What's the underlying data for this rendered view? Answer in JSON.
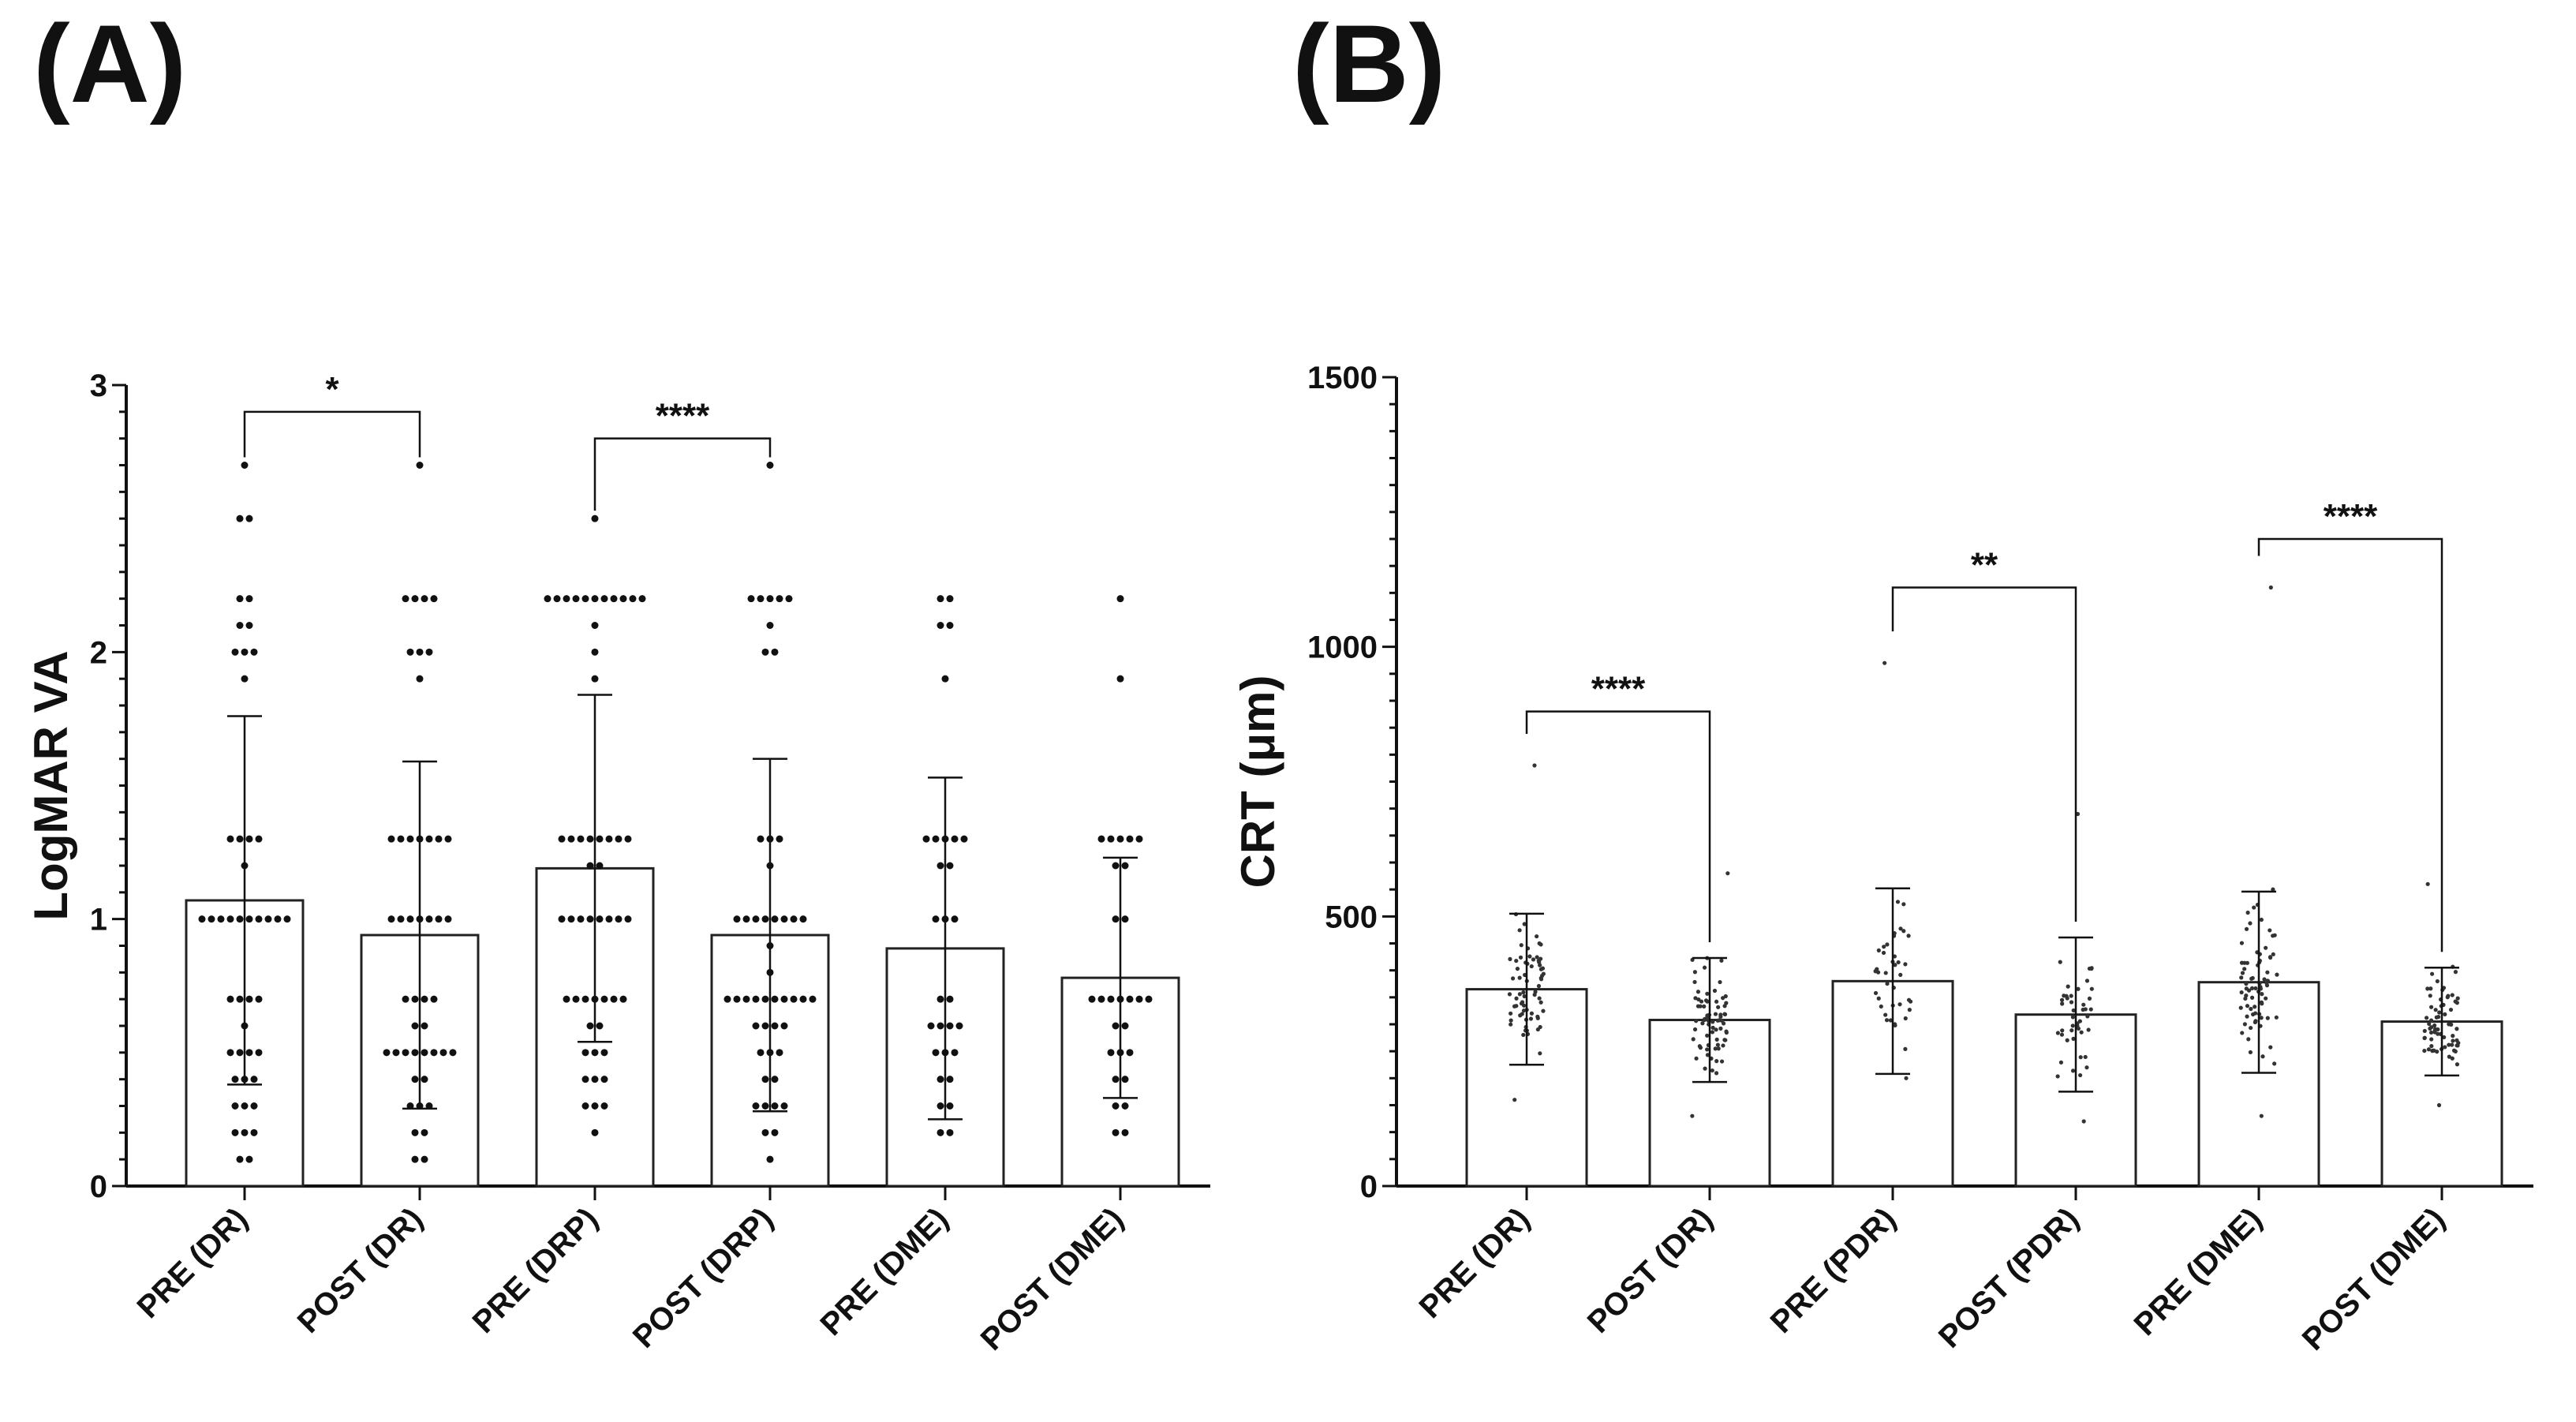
{
  "panels": {
    "a_label": "(A)",
    "b_label": "(B)"
  },
  "chart_data": [
    {
      "type": "bar",
      "panel": "(A)",
      "title": "",
      "xlabel": "",
      "ylabel": "LogMAR VA",
      "ylim": [
        0,
        3
      ],
      "yticks": [
        0,
        1,
        2,
        3
      ],
      "categories": [
        "PRE (DR)",
        "POST (DR)",
        "PRE (DRP)",
        "POST (DRP)",
        "PRE (DME)",
        "POST (DME)"
      ],
      "values": [
        1.07,
        0.94,
        1.19,
        0.94,
        0.89,
        0.78
      ],
      "error_sd": [
        0.69,
        0.65,
        0.65,
        0.66,
        0.64,
        0.45
      ],
      "points": [
        [
          2.7,
          2.5,
          2.5,
          2.2,
          2.2,
          2.1,
          2.1,
          2.0,
          2.0,
          2.0,
          1.9,
          1.3,
          1.3,
          1.3,
          1.3,
          1.2,
          1.0,
          1.0,
          1.0,
          1.0,
          1.0,
          1.0,
          1.0,
          1.0,
          1.0,
          1.0,
          0.7,
          0.7,
          0.7,
          0.7,
          0.6,
          0.5,
          0.5,
          0.5,
          0.5,
          0.4,
          0.4,
          0.4,
          0.3,
          0.3,
          0.3,
          0.2,
          0.2,
          0.2,
          0.1,
          0.1
        ],
        [
          2.7,
          2.2,
          2.2,
          2.2,
          2.2,
          2.0,
          2.0,
          2.0,
          1.9,
          1.3,
          1.3,
          1.3,
          1.3,
          1.3,
          1.3,
          1.3,
          1.0,
          1.0,
          1.0,
          1.0,
          1.0,
          1.0,
          1.0,
          0.7,
          0.7,
          0.7,
          0.7,
          0.6,
          0.6,
          0.5,
          0.5,
          0.5,
          0.5,
          0.5,
          0.5,
          0.5,
          0.5,
          0.4,
          0.4,
          0.3,
          0.3,
          0.3,
          0.2,
          0.2,
          0.1,
          0.1
        ],
        [
          2.5,
          2.2,
          2.2,
          2.2,
          2.2,
          2.2,
          2.2,
          2.2,
          2.2,
          2.2,
          2.2,
          2.2,
          2.1,
          2.0,
          1.9,
          1.3,
          1.3,
          1.3,
          1.3,
          1.3,
          1.3,
          1.3,
          1.3,
          1.2,
          1.2,
          1.0,
          1.0,
          1.0,
          1.0,
          1.0,
          1.0,
          1.0,
          1.0,
          0.7,
          0.7,
          0.7,
          0.7,
          0.7,
          0.7,
          0.7,
          0.6,
          0.6,
          0.5,
          0.5,
          0.5,
          0.4,
          0.4,
          0.4,
          0.3,
          0.3,
          0.3,
          0.2
        ],
        [
          2.7,
          2.2,
          2.2,
          2.2,
          2.2,
          2.2,
          2.1,
          2.0,
          2.0,
          1.3,
          1.3,
          1.3,
          1.2,
          1.0,
          1.0,
          1.0,
          1.0,
          1.0,
          1.0,
          1.0,
          1.0,
          0.9,
          0.8,
          0.7,
          0.7,
          0.7,
          0.7,
          0.7,
          0.7,
          0.7,
          0.7,
          0.7,
          0.7,
          0.6,
          0.6,
          0.6,
          0.6,
          0.5,
          0.5,
          0.5,
          0.4,
          0.4,
          0.3,
          0.3,
          0.3,
          0.3,
          0.2,
          0.2,
          0.1
        ],
        [
          2.2,
          2.2,
          2.1,
          2.1,
          1.9,
          1.3,
          1.3,
          1.3,
          1.3,
          1.3,
          1.2,
          1.2,
          1.0,
          1.0,
          1.0,
          0.7,
          0.7,
          0.6,
          0.6,
          0.6,
          0.6,
          0.5,
          0.5,
          0.5,
          0.4,
          0.4,
          0.3,
          0.3,
          0.2,
          0.2
        ],
        [
          2.2,
          1.9,
          1.3,
          1.3,
          1.3,
          1.3,
          1.3,
          1.2,
          1.2,
          1.0,
          1.0,
          0.7,
          0.7,
          0.7,
          0.7,
          0.7,
          0.7,
          0.7,
          0.6,
          0.6,
          0.5,
          0.5,
          0.5,
          0.4,
          0.4,
          0.3,
          0.3,
          0.2,
          0.2
        ]
      ],
      "comparisons": [
        {
          "from": 0,
          "to": 1,
          "label": "*",
          "y": 2.9
        },
        {
          "from": 2,
          "to": 3,
          "label": "****",
          "y": 2.8
        }
      ]
    },
    {
      "type": "bar",
      "panel": "(B)",
      "title": "",
      "xlabel": "",
      "ylabel": "CRT (μm)",
      "ylim": [
        0,
        1500
      ],
      "yticks": [
        0,
        500,
        1000,
        1500
      ],
      "categories": [
        "PRE (DR)",
        "POST (DR)",
        "PRE (PDR)",
        "POST (PDR)",
        "PRE (DME)",
        "POST (DME)"
      ],
      "values": [
        365,
        308,
        380,
        318,
        378,
        305
      ],
      "error_sd": [
        140,
        115,
        172,
        143,
        168,
        100
      ],
      "point_spread": [
        [
          160,
          780
        ],
        [
          130,
          580
        ],
        [
          200,
          970
        ],
        [
          120,
          690
        ],
        [
          130,
          1110
        ],
        [
          150,
          560
        ]
      ],
      "point_counts": [
        70,
        75,
        40,
        45,
        75,
        70
      ],
      "comparisons": [
        {
          "from": 0,
          "to": 1,
          "label": "****",
          "y": 880
        },
        {
          "from": 2,
          "to": 3,
          "label": "**",
          "y": 1110
        },
        {
          "from": 4,
          "to": 5,
          "label": "****",
          "y": 1200
        }
      ]
    }
  ]
}
